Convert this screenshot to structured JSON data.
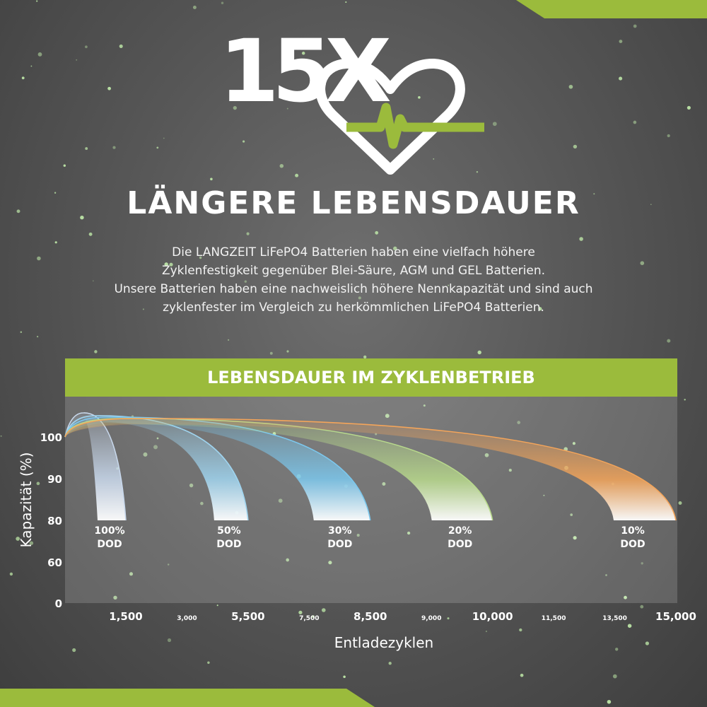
{
  "logo": {
    "number": "15X",
    "icon": "heart-pulse-icon"
  },
  "headline": "LÄNGERE LEBENSDAUER",
  "description": [
    "Die LANGZEIT LiFePO4 Batterien haben eine vielfach höhere",
    "Zyklenfestigkeit gegenüber Blei-Säure, AGM und GEL Batterien.",
    "Unsere Batterien haben eine nachweislich höhere Nennkapazität und sind auch",
    "zyklenfester im Vergleich zu herkömmlichen LiFePO4 Batterien."
  ],
  "colors": {
    "accent": "#9bbb3c",
    "background": "#5a5a5a",
    "star": "#c8f5b0"
  },
  "chart_data": {
    "type": "line",
    "title": "LEBENSDAUER IM ZYKLENBETRIEB",
    "xlabel": "Entladezyklen",
    "ylabel": "Kapazität (%)",
    "y_ticks": [
      "100",
      "90",
      "80",
      "60",
      "0"
    ],
    "x_ticks": [
      "1,500",
      "3,000",
      "5,500",
      "7,500",
      "8,500",
      "9,000",
      "10,000",
      "11,500",
      "13,500",
      "15,000"
    ],
    "x_ticks_major": [
      true,
      false,
      true,
      false,
      true,
      false,
      true,
      false,
      false,
      true
    ],
    "grid": false,
    "series": [
      {
        "name": "100% DOD",
        "label_line1": "100%",
        "label_line2": "DOD",
        "end_cycles": 1500,
        "end_capacity": 80,
        "color": "#c8d8ec"
      },
      {
        "name": "50% DOD",
        "label_line1": "50%",
        "label_line2": "DOD",
        "end_cycles": 5500,
        "end_capacity": 80,
        "color": "#9fd4ef"
      },
      {
        "name": "30% DOD",
        "label_line1": "30%",
        "label_line2": "DOD",
        "end_cycles": 8500,
        "end_capacity": 80,
        "color": "#7cc8ee"
      },
      {
        "name": "20% DOD",
        "label_line1": "20%",
        "label_line2": "DOD",
        "end_cycles": 10000,
        "end_capacity": 80,
        "color": "#b8d98c"
      },
      {
        "name": "10% DOD",
        "label_line1": "10%",
        "label_line2": "DOD",
        "end_cycles": 15000,
        "end_capacity": 80,
        "color": "#f4a55a"
      }
    ]
  }
}
